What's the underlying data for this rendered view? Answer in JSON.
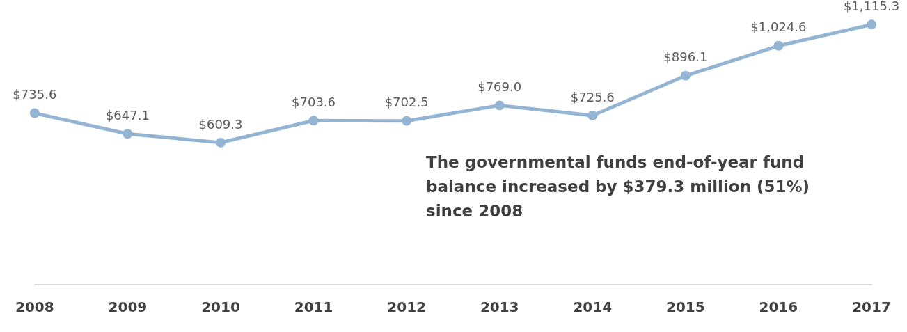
{
  "chart_data": {
    "type": "line",
    "categories": [
      "2008",
      "2009",
      "2010",
      "2011",
      "2012",
      "2013",
      "2014",
      "2015",
      "2016",
      "2017"
    ],
    "series": [
      {
        "color": "#94b4d4",
        "values": [
          735.6,
          647.1,
          609.3,
          703.6,
          702.5,
          769.0,
          725.6,
          896.1,
          1024.6,
          1115.3
        ],
        "value_labels": [
          "$735.6",
          "$647.1",
          "$609.3",
          "$703.6",
          "$702.5",
          "$769.0",
          "$725.6",
          "$896.1",
          "$1,024.6",
          "$1,115.3"
        ]
      }
    ],
    "tick_labels": "x",
    "grid": false,
    "legend": false,
    "marker": "circle",
    "line_style": "solid",
    "annotations": [
      "The governmental funds end-of-year fund balance increased by $379.3 million (51%) since 2008"
    ]
  }
}
